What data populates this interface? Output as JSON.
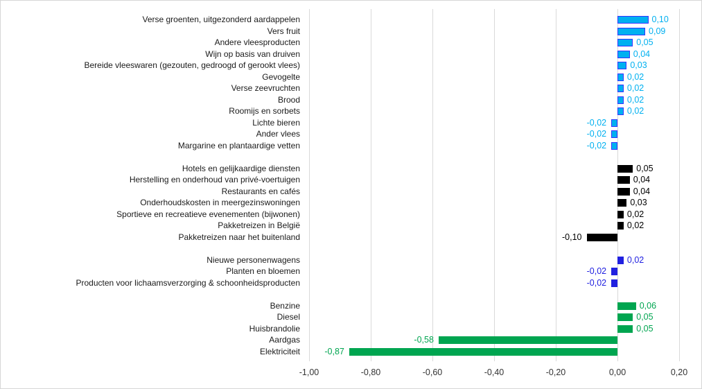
{
  "chart_data": {
    "type": "bar",
    "orientation": "horizontal",
    "title": "",
    "xlabel": "",
    "ylabel": "",
    "xlim": [
      -1.0,
      0.2
    ],
    "grid": "vertical",
    "value_format": "decimal-comma",
    "x_axis": {
      "tick_values": [
        -1.0,
        -0.8,
        -0.6,
        -0.4,
        -0.2,
        0.0,
        0.2
      ],
      "tick_labels": [
        "-1,00",
        "-0,80",
        "-0,60",
        "-0,40",
        "-0,20",
        "0,00",
        "0,20"
      ]
    },
    "groups": [
      {
        "name": "food-and-drinks",
        "bar_color": "#00B0F0",
        "bar_border_color": "#3333FF",
        "label_color": "#00B0F0",
        "items": [
          {
            "label": "Verse groenten, uitgezonderd aardappelen",
            "value": 0.1,
            "display": "0,10"
          },
          {
            "label": "Vers fruit",
            "value": 0.09,
            "display": "0,09"
          },
          {
            "label": "Andere vleesproducten",
            "value": 0.05,
            "display": "0,05"
          },
          {
            "label": "Wijn op basis van druiven",
            "value": 0.04,
            "display": "0,04"
          },
          {
            "label": "Bereide vleeswaren (gezouten, gedroogd of gerookt vlees)",
            "value": 0.03,
            "display": "0,03"
          },
          {
            "label": "Gevogelte",
            "value": 0.02,
            "display": "0,02"
          },
          {
            "label": "Verse zeevruchten",
            "value": 0.02,
            "display": "0,02"
          },
          {
            "label": "Brood",
            "value": 0.02,
            "display": "0,02"
          },
          {
            "label": "Roomijs en sorbets",
            "value": 0.02,
            "display": "0,02"
          },
          {
            "label": "Lichte bieren",
            "value": -0.02,
            "display": "-0,02"
          },
          {
            "label": "Ander vlees",
            "value": -0.02,
            "display": "-0,02"
          },
          {
            "label": "Margarine en plantaardige vetten",
            "value": -0.02,
            "display": "-0,02"
          }
        ]
      },
      {
        "name": "services",
        "bar_color": "#000000",
        "bar_border_color": "",
        "label_color": "#000000",
        "items": [
          {
            "label": "Hotels en gelijkaardige diensten",
            "value": 0.05,
            "display": "0,05"
          },
          {
            "label": "Herstelling en onderhoud van privé-voertuigen",
            "value": 0.04,
            "display": "0,04"
          },
          {
            "label": "Restaurants en cafés",
            "value": 0.04,
            "display": "0,04"
          },
          {
            "label": "Onderhoudskosten in meergezinswoningen",
            "value": 0.03,
            "display": "0,03"
          },
          {
            "label": "Sportieve en recreatieve evenementen (bijwonen)",
            "value": 0.02,
            "display": "0,02"
          },
          {
            "label": "Pakketreizen in België",
            "value": 0.02,
            "display": "0,02"
          },
          {
            "label": "Pakketreizen naar het buitenland",
            "value": -0.1,
            "display": "-0,10"
          }
        ]
      },
      {
        "name": "non-energy-goods",
        "bar_color": "#2020E0",
        "bar_border_color": "",
        "label_color": "#2020E0",
        "items": [
          {
            "label": "Nieuwe personenwagens",
            "value": 0.02,
            "display": "0,02"
          },
          {
            "label": "Planten en bloemen",
            "value": -0.02,
            "display": "-0,02"
          },
          {
            "label": "Producten voor lichaamsverzorging & schoonheidsproducten",
            "value": -0.02,
            "display": "-0,02"
          }
        ]
      },
      {
        "name": "energy",
        "bar_color": "#00A550",
        "bar_border_color": "",
        "label_color": "#00A550",
        "items": [
          {
            "label": "Benzine",
            "value": 0.06,
            "display": "0,06"
          },
          {
            "label": "Diesel",
            "value": 0.05,
            "display": "0,05"
          },
          {
            "label": "Huisbrandolie",
            "value": 0.05,
            "display": "0,05"
          },
          {
            "label": "Aardgas",
            "value": -0.58,
            "display": "-0,58"
          },
          {
            "label": "Elektriciteit",
            "value": -0.87,
            "display": "-0,87"
          }
        ]
      }
    ]
  }
}
